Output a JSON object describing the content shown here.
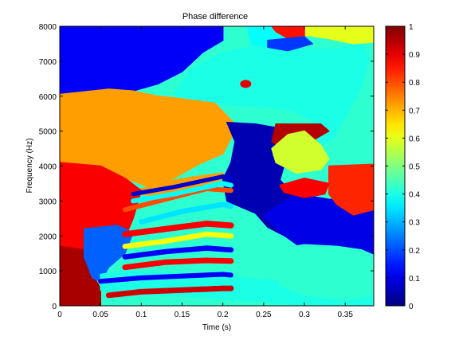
{
  "chart_data": {
    "type": "heatmap",
    "title": "Phase difference",
    "xlabel": "Time (s)",
    "ylabel": "Frequency (Hz)",
    "xlim": [
      0,
      0.385
    ],
    "ylim": [
      0,
      8000
    ],
    "x_ticks": [
      0,
      0.05,
      0.1,
      0.15,
      0.2,
      0.25,
      0.3,
      0.35
    ],
    "x_tick_labels": [
      "0",
      "0.05",
      "0.1",
      "0.15",
      "0.2",
      "0.25",
      "0.3",
      "0.35"
    ],
    "y_ticks": [
      0,
      1000,
      2000,
      3000,
      4000,
      5000,
      6000,
      7000,
      8000
    ],
    "y_tick_labels": [
      "0",
      "1000",
      "2000",
      "3000",
      "4000",
      "5000",
      "6000",
      "7000",
      "8000"
    ],
    "colorbar": {
      "range": [
        0,
        1
      ],
      "ticks": [
        0,
        0.1,
        0.2,
        0.3,
        0.4,
        0.5,
        0.6,
        0.7,
        0.8,
        0.9,
        1
      ],
      "tick_labels": [
        "0",
        "0.1",
        "0.2",
        "0.3",
        "0.4",
        "0.5",
        "0.6",
        "0.7",
        "0.8",
        "0.9",
        "1"
      ],
      "colormap": "jet"
    },
    "regions": [
      {
        "label": "top-left",
        "value": 0.12,
        "poly": [
          [
            0,
            8000
          ],
          [
            0.2,
            8000
          ],
          [
            0.2,
            7600
          ],
          [
            0.175,
            7250
          ],
          [
            0.15,
            6700
          ],
          [
            0.12,
            6350
          ],
          [
            0.09,
            6150
          ],
          [
            0.06,
            6200
          ],
          [
            0,
            6050
          ]
        ]
      },
      {
        "label": "upper-right-teal",
        "value": 0.4,
        "poly": [
          [
            0.14,
            6050
          ],
          [
            0.16,
            6750
          ],
          [
            0.2,
            7250
          ],
          [
            0.235,
            7400
          ],
          [
            0.29,
            7350
          ],
          [
            0.34,
            7350
          ],
          [
            0.37,
            7550
          ],
          [
            0.38,
            7100
          ],
          [
            0.37,
            6300
          ],
          [
            0.355,
            5600
          ],
          [
            0.335,
            4800
          ],
          [
            0.32,
            4600
          ],
          [
            0.31,
            5300
          ],
          [
            0.285,
            5600
          ],
          [
            0.25,
            5700
          ],
          [
            0.205,
            5750
          ],
          [
            0.165,
            5900
          ]
        ]
      },
      {
        "label": "top-cyan",
        "value": 0.38,
        "poly": [
          [
            0.23,
            8000
          ],
          [
            0.26,
            8000
          ],
          [
            0.28,
            7700
          ],
          [
            0.27,
            7400
          ],
          [
            0.235,
            7450
          ]
        ]
      },
      {
        "label": "top-yellowgreen",
        "value": 0.6,
        "poly": [
          [
            0.3,
            8000
          ],
          [
            0.385,
            8000
          ],
          [
            0.385,
            7550
          ],
          [
            0.36,
            7500
          ],
          [
            0.33,
            7650
          ],
          [
            0.3,
            7750
          ]
        ]
      },
      {
        "label": "top-red",
        "value": 0.86,
        "poly": [
          [
            0.26,
            8000
          ],
          [
            0.3,
            8000
          ],
          [
            0.3,
            7700
          ],
          [
            0.28,
            7650
          ],
          [
            0.265,
            7850
          ]
        ]
      },
      {
        "label": "top-blue",
        "value": 0.18,
        "poly": [
          [
            0.255,
            7600
          ],
          [
            0.3,
            7700
          ],
          [
            0.31,
            7500
          ],
          [
            0.28,
            7300
          ],
          [
            0.255,
            7400
          ]
        ]
      },
      {
        "label": "orange-upper",
        "value": 0.72,
        "poly": [
          [
            0,
            6050
          ],
          [
            0.06,
            6200
          ],
          [
            0.09,
            6150
          ],
          [
            0.12,
            6000
          ],
          [
            0.14,
            5950
          ],
          [
            0.19,
            5800
          ],
          [
            0.215,
            5200
          ],
          [
            0.21,
            4800
          ],
          [
            0.2,
            4350
          ],
          [
            0.17,
            4050
          ],
          [
            0.14,
            3650
          ],
          [
            0.11,
            3400
          ],
          [
            0.08,
            3650
          ],
          [
            0.05,
            4000
          ],
          [
            0,
            4100
          ]
        ]
      },
      {
        "label": "orange-stripe-mid",
        "value": 0.72,
        "poly": [
          [
            0.1,
            3350
          ],
          [
            0.13,
            3550
          ],
          [
            0.165,
            3700
          ],
          [
            0.2,
            3800
          ],
          [
            0.205,
            3650
          ],
          [
            0.18,
            3500
          ],
          [
            0.15,
            3300
          ],
          [
            0.12,
            3150
          ],
          [
            0.09,
            3200
          ]
        ]
      },
      {
        "label": "blue-center-band",
        "value": 0.05,
        "poly": [
          [
            0.205,
            5250
          ],
          [
            0.24,
            5200
          ],
          [
            0.265,
            5100
          ],
          [
            0.27,
            4600
          ],
          [
            0.26,
            4300
          ],
          [
            0.275,
            4000
          ],
          [
            0.27,
            3600
          ],
          [
            0.29,
            3100
          ],
          [
            0.33,
            2900
          ],
          [
            0.36,
            2700
          ],
          [
            0.38,
            2500
          ],
          [
            0.385,
            2300
          ],
          [
            0.385,
            1400
          ],
          [
            0.35,
            1450
          ],
          [
            0.32,
            1700
          ],
          [
            0.28,
            1950
          ],
          [
            0.255,
            2250
          ],
          [
            0.24,
            2650
          ],
          [
            0.22,
            2850
          ],
          [
            0.205,
            3000
          ],
          [
            0.2,
            3600
          ],
          [
            0.21,
            4100
          ],
          [
            0.215,
            4700
          ]
        ]
      },
      {
        "label": "right-lower-blue",
        "value": 0.1,
        "poly": [
          [
            0.29,
            3200
          ],
          [
            0.33,
            3050
          ],
          [
            0.36,
            3000
          ],
          [
            0.385,
            3150
          ],
          [
            0.385,
            1400
          ],
          [
            0.34,
            1500
          ],
          [
            0.3,
            1600
          ],
          [
            0.27,
            2100
          ],
          [
            0.25,
            2600
          ]
        ]
      },
      {
        "label": "maroon-block",
        "value": 0.95,
        "poly": [
          [
            0.265,
            5200
          ],
          [
            0.32,
            5200
          ],
          [
            0.33,
            5000
          ],
          [
            0.3,
            4600
          ],
          [
            0.28,
            4400
          ],
          [
            0.26,
            4700
          ]
        ]
      },
      {
        "label": "green-blob",
        "value": 0.58,
        "poly": [
          [
            0.26,
            4500
          ],
          [
            0.28,
            4900
          ],
          [
            0.3,
            5000
          ],
          [
            0.32,
            4600
          ],
          [
            0.33,
            4200
          ],
          [
            0.32,
            3900
          ],
          [
            0.29,
            3800
          ],
          [
            0.265,
            4100
          ]
        ]
      },
      {
        "label": "red-block-right",
        "value": 0.84,
        "poly": [
          [
            0.33,
            4000
          ],
          [
            0.385,
            4050
          ],
          [
            0.385,
            2750
          ],
          [
            0.36,
            2600
          ],
          [
            0.34,
            2900
          ],
          [
            0.33,
            3200
          ]
        ]
      },
      {
        "label": "red-small-mid",
        "value": 0.88,
        "poly": [
          [
            0.27,
            3450
          ],
          [
            0.3,
            3650
          ],
          [
            0.33,
            3500
          ],
          [
            0.325,
            3200
          ],
          [
            0.3,
            3100
          ],
          [
            0.275,
            3250
          ]
        ]
      },
      {
        "label": "red-lower-left",
        "value": 0.88,
        "poly": [
          [
            0,
            4100
          ],
          [
            0.05,
            4000
          ],
          [
            0.08,
            3650
          ],
          [
            0.1,
            3300
          ],
          [
            0.09,
            2500
          ],
          [
            0.08,
            1950
          ],
          [
            0.06,
            1600
          ],
          [
            0.04,
            1250
          ],
          [
            0.02,
            900
          ],
          [
            0,
            1000
          ]
        ]
      },
      {
        "label": "maroon-lower-left",
        "value": 0.96,
        "poly": [
          [
            0,
            1700
          ],
          [
            0.03,
            1600
          ],
          [
            0.04,
            900
          ],
          [
            0.05,
            500
          ],
          [
            0.05,
            0
          ],
          [
            0,
            0
          ]
        ]
      },
      {
        "label": "blue-lower-left",
        "value": 0.22,
        "poly": [
          [
            0.03,
            2200
          ],
          [
            0.07,
            2300
          ],
          [
            0.09,
            2100
          ],
          [
            0.08,
            1500
          ],
          [
            0.06,
            1100
          ],
          [
            0.05,
            700
          ],
          [
            0.04,
            800
          ],
          [
            0.03,
            1400
          ]
        ]
      },
      {
        "label": "cyan-lower",
        "value": 0.4,
        "poly": [
          [
            0.05,
            900
          ],
          [
            0.08,
            1000
          ],
          [
            0.12,
            950
          ],
          [
            0.16,
            900
          ],
          [
            0.2,
            850
          ],
          [
            0.25,
            750
          ],
          [
            0.3,
            700
          ],
          [
            0.35,
            700
          ],
          [
            0.385,
            800
          ],
          [
            0.385,
            0
          ],
          [
            0.3,
            0
          ],
          [
            0.26,
            100
          ],
          [
            0.2,
            200
          ],
          [
            0.14,
            300
          ],
          [
            0.08,
            350
          ],
          [
            0.05,
            450
          ]
        ]
      },
      {
        "label": "teal-right-lower",
        "value": 0.42,
        "poly": [
          [
            0.26,
            1600
          ],
          [
            0.3,
            1750
          ],
          [
            0.34,
            1700
          ],
          [
            0.37,
            1600
          ],
          [
            0.385,
            1450
          ],
          [
            0.385,
            300
          ],
          [
            0.35,
            200
          ],
          [
            0.3,
            300
          ],
          [
            0.27,
            600
          ]
        ]
      }
    ],
    "stripes": [
      {
        "value": 0.35,
        "x": [
          0.1,
          0.15,
          0.2,
          0.21
        ],
        "y": [
          2400,
          2700,
          2900,
          2850
        ],
        "w": 150
      },
      {
        "value": 0.88,
        "x": [
          0.08,
          0.13,
          0.18,
          0.21
        ],
        "y": [
          2050,
          2200,
          2350,
          2300
        ],
        "w": 170
      },
      {
        "value": 0.62,
        "x": [
          0.08,
          0.13,
          0.18,
          0.21
        ],
        "y": [
          1700,
          1850,
          2050,
          2000
        ],
        "w": 150
      },
      {
        "value": 0.12,
        "x": [
          0.08,
          0.13,
          0.18,
          0.21
        ],
        "y": [
          1400,
          1550,
          1650,
          1600
        ],
        "w": 150
      },
      {
        "value": 0.88,
        "x": [
          0.08,
          0.13,
          0.18,
          0.21
        ],
        "y": [
          1100,
          1250,
          1300,
          1280
        ],
        "w": 160
      },
      {
        "value": 0.12,
        "x": [
          0.05,
          0.1,
          0.15,
          0.2,
          0.21
        ],
        "y": [
          700,
          800,
          850,
          900,
          880
        ],
        "w": 140
      },
      {
        "value": 0.8,
        "x": [
          0.08,
          0.13,
          0.18,
          0.21
        ],
        "y": [
          2750,
          3050,
          3350,
          3300
        ],
        "w": 140
      },
      {
        "value": 0.38,
        "x": [
          0.09,
          0.14,
          0.2,
          0.21
        ],
        "y": [
          3000,
          3200,
          3500,
          3450
        ],
        "w": 140
      },
      {
        "value": 0.08,
        "x": [
          0.09,
          0.14,
          0.2,
          0.21
        ],
        "y": [
          3200,
          3400,
          3700,
          3650
        ],
        "w": 120
      },
      {
        "value": 0.92,
        "x": [
          0.06,
          0.1,
          0.15,
          0.2,
          0.21
        ],
        "y": [
          300,
          400,
          450,
          500,
          500
        ],
        "w": 160
      }
    ],
    "specks": [
      {
        "value": 0.9,
        "x": 0.228,
        "y": 6350
      }
    ]
  }
}
